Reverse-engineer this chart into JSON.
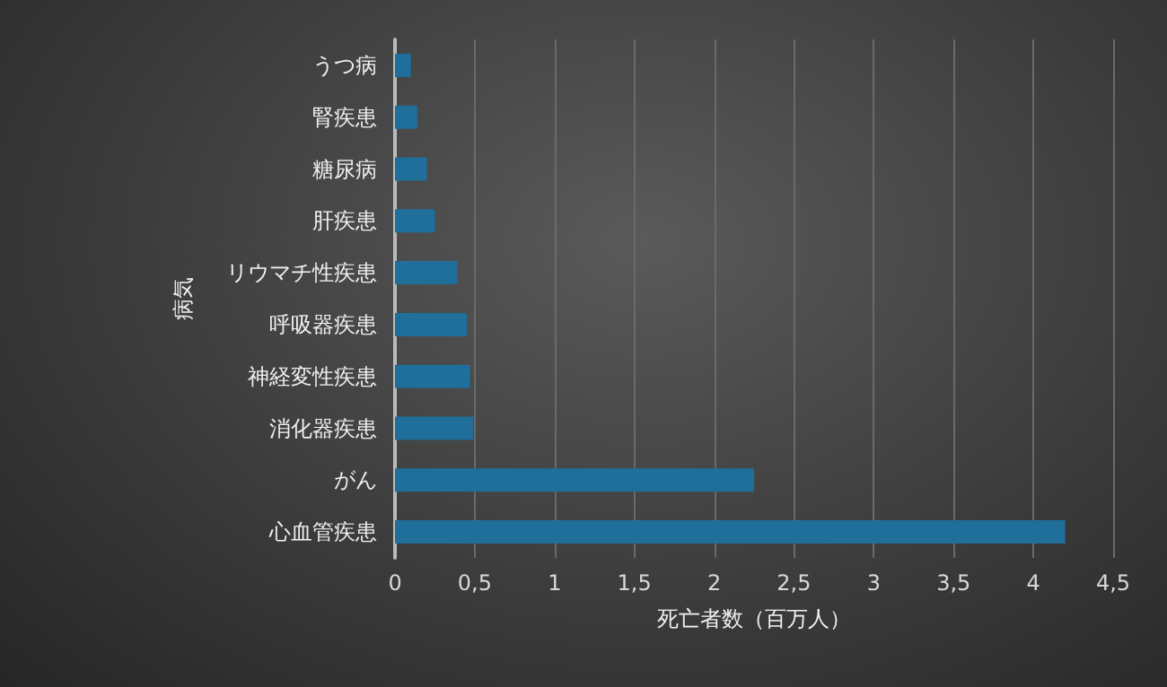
{
  "chart_data": {
    "type": "bar",
    "orientation": "horizontal",
    "xlabel": "死亡者数（百万人）",
    "ylabel": "病気",
    "categories": [
      "うつ病",
      "腎疾患",
      "糖尿病",
      "肝疾患",
      "リウマチ性疾患",
      "呼吸器疾患",
      "神経変性疾患",
      "消化器疾患",
      "がん",
      "心血管疾患"
    ],
    "values": [
      0.1,
      0.14,
      0.2,
      0.25,
      0.39,
      0.45,
      0.47,
      0.49,
      2.25,
      4.2
    ],
    "color": "#1f6f9a",
    "xlim": [
      0,
      4.5
    ],
    "xticks": [
      0,
      {
        "value": 0.5,
        "label": "0,5"
      },
      1,
      {
        "value": 1.5,
        "label": "1,5"
      },
      2,
      {
        "value": 2.5,
        "label": "2,5"
      },
      3,
      {
        "value": 3.5,
        "label": "3,5"
      },
      4,
      {
        "value": 4.5,
        "label": "4,5"
      }
    ],
    "grid": "x"
  }
}
